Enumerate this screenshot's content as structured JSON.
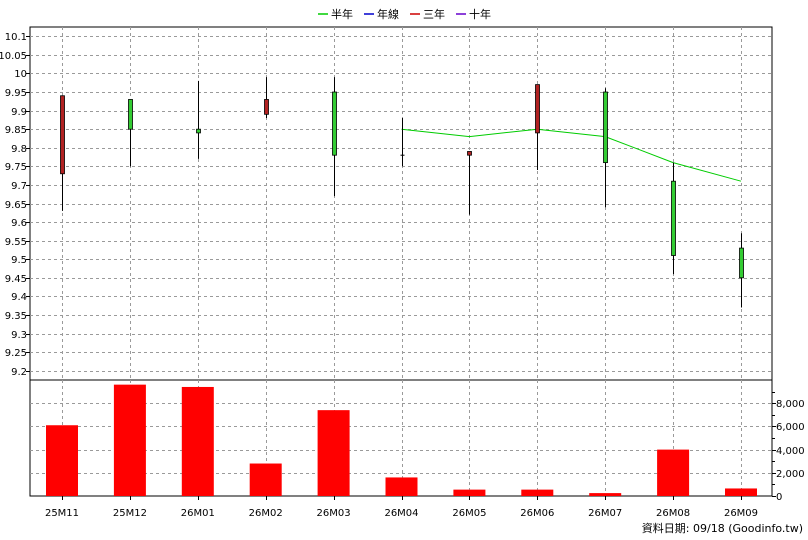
{
  "chart_data": [
    {
      "type": "candlestick",
      "legend": [
        {
          "name": "半年",
          "color": "#00cc00"
        },
        {
          "name": "年線",
          "color": "#0000cc"
        },
        {
          "name": "三年",
          "color": "#cc0000"
        },
        {
          "name": "十年",
          "color": "#6600cc"
        }
      ],
      "legend_position": "top-center",
      "categories": [
        "25M11",
        "25M12",
        "26M01",
        "26M02",
        "26M03",
        "26M04",
        "26M05",
        "26M06",
        "26M07",
        "26M08",
        "26M09"
      ],
      "ohlc": [
        {
          "open": 9.94,
          "high": 9.94,
          "low": 9.63,
          "close": 9.73
        },
        {
          "open": 9.85,
          "high": 9.93,
          "low": 9.75,
          "close": 9.93
        },
        {
          "open": 9.84,
          "high": 9.98,
          "low": 9.77,
          "close": 9.85
        },
        {
          "open": 9.93,
          "high": 9.99,
          "low": 9.88,
          "close": 9.89
        },
        {
          "open": 9.78,
          "high": 9.99,
          "low": 9.67,
          "close": 9.95
        },
        {
          "open": 9.78,
          "high": 9.88,
          "low": 9.75,
          "close": 9.78
        },
        {
          "open": 9.79,
          "high": 9.79,
          "low": 9.62,
          "close": 9.78
        },
        {
          "open": 9.97,
          "high": 9.97,
          "low": 9.74,
          "close": 9.84
        },
        {
          "open": 9.76,
          "high": 9.96,
          "low": 9.64,
          "close": 9.95
        },
        {
          "open": 9.51,
          "high": 9.76,
          "low": 9.46,
          "close": 9.71
        },
        {
          "open": 9.45,
          "high": 9.57,
          "low": 9.37,
          "close": 9.53
        }
      ],
      "up_color": "#33cc33",
      "down_color": "#b22222",
      "ma_series": {
        "name": "半年",
        "values": [
          null,
          null,
          null,
          null,
          null,
          9.85,
          9.83,
          9.85,
          9.83,
          9.76,
          9.71
        ]
      },
      "ylim": [
        9.175,
        10.125
      ],
      "yticks": [
        "10.1",
        "10.05",
        "10",
        "9.95",
        "9.9",
        "9.85",
        "9.8",
        "9.75",
        "9.7",
        "9.65",
        "9.6",
        "9.55",
        "9.5",
        "9.45",
        "9.4",
        "9.35",
        "9.3",
        "9.25",
        "9.2"
      ],
      "ytick_values": [
        10.1,
        10.05,
        10,
        9.95,
        9.9,
        9.85,
        9.8,
        9.75,
        9.7,
        9.65,
        9.6,
        9.55,
        9.5,
        9.45,
        9.4,
        9.35,
        9.3,
        9.25,
        9.2
      ],
      "axis_side": "left",
      "grid": true
    },
    {
      "type": "bar",
      "categories": [
        "25M11",
        "25M12",
        "26M01",
        "26M02",
        "26M03",
        "26M04",
        "26M05",
        "26M06",
        "26M07",
        "26M08",
        "26M09"
      ],
      "values": [
        6100,
        9600,
        9400,
        2800,
        7400,
        1600,
        550,
        550,
        250,
        4000,
        650
      ],
      "color": "#ff0000",
      "ylim": [
        0,
        10000
      ],
      "yticks": [
        "0",
        "2,000",
        "4,000",
        "6,000",
        "8,000"
      ],
      "ytick_values": [
        0,
        2000,
        4000,
        6000,
        8000
      ],
      "axis_side": "right",
      "grid": true
    }
  ],
  "credit_text": "資料日期: 09/18  (Goodinfo.tw)"
}
